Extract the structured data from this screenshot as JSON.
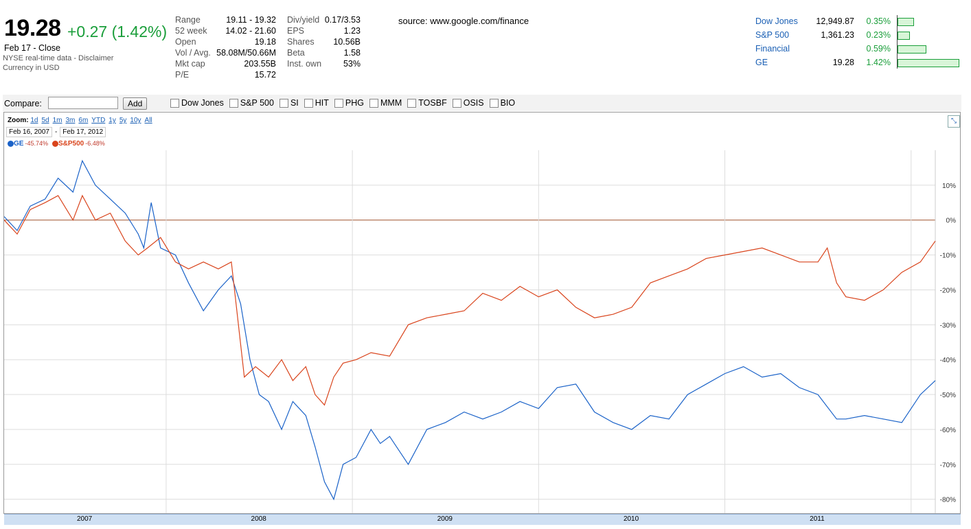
{
  "quote": {
    "price": "19.28",
    "change": "+0.27 (1.42%)",
    "close_label": "Feb 17 - Close",
    "realtime_text": "NYSE real-time data - ",
    "disclaimer": "Disclaimer",
    "currency": "Currency in USD"
  },
  "stats_col1": [
    {
      "key": "Range",
      "value": "19.11 - 19.32"
    },
    {
      "key": "52 week",
      "value": "14.02 - 21.60"
    },
    {
      "key": "Open",
      "value": "19.18"
    },
    {
      "key": "Vol / Avg.",
      "value": "58.08M/50.66M"
    },
    {
      "key": "Mkt cap",
      "value": "203.55B"
    },
    {
      "key": "P/E",
      "value": "15.72"
    }
  ],
  "stats_col2": [
    {
      "key": "Div/yield",
      "value": "0.17/3.53"
    },
    {
      "key": "EPS",
      "value": "1.23"
    },
    {
      "key": "Shares",
      "value": "10.56B"
    },
    {
      "key": "Beta",
      "value": "1.58"
    },
    {
      "key": "Inst. own",
      "value": "53%"
    }
  ],
  "source": "source: www.google.com/finance",
  "indices": [
    {
      "name": "Dow Jones",
      "value": "12,949.87",
      "pct": "0.35%",
      "bar_fraction": 0.25
    },
    {
      "name": "S&P 500",
      "value": "1,361.23",
      "pct": "0.23%",
      "bar_fraction": 0.18
    },
    {
      "name": "Financial",
      "value": "",
      "pct": "0.59%",
      "bar_fraction": 0.45
    },
    {
      "name": "GE",
      "value": "19.28",
      "pct": "1.42%",
      "bar_fraction": 1.0
    }
  ],
  "compare": {
    "label": "Compare:",
    "add_button": "Add",
    "checkboxes": [
      "Dow Jones",
      "S&P 500",
      "SI",
      "HIT",
      "PHG",
      "MMM",
      "TOSBF",
      "OSIS",
      "BIO"
    ]
  },
  "zoom": {
    "label": "Zoom:",
    "options": [
      "1d",
      "5d",
      "1m",
      "3m",
      "6m",
      "YTD",
      "1y",
      "5y",
      "10y",
      "All"
    ],
    "date_from": "Feb 16, 2007",
    "date_sep": "-",
    "date_to": "Feb 17, 2012"
  },
  "legend": [
    {
      "name": "GE",
      "pct": "-45.74%",
      "color": "#1a62c8"
    },
    {
      "name": "S&P500",
      "pct": "-6.48%",
      "color": "#d9441c"
    }
  ],
  "chart_data": {
    "type": "line",
    "y_unit": "percent change",
    "ylim": [
      -84,
      20
    ],
    "yticks": [
      "10%",
      "0%",
      "-10%",
      "-20%",
      "-30%",
      "-40%",
      "-50%",
      "-60%",
      "-70%",
      "-80%"
    ],
    "xlabels": [
      "2007",
      "2008",
      "2009",
      "2010",
      "2011"
    ],
    "xlim": [
      2007.13,
      2012.13
    ],
    "series": [
      {
        "name": "GE",
        "color": "#1a62c8",
        "x": [
          2007.13,
          2007.2,
          2007.27,
          2007.35,
          2007.42,
          2007.5,
          2007.55,
          2007.62,
          2007.7,
          2007.78,
          2007.85,
          2007.88,
          2007.92,
          2007.97,
          2008.05,
          2008.12,
          2008.2,
          2008.28,
          2008.35,
          2008.4,
          2008.45,
          2008.5,
          2008.55,
          2008.62,
          2008.68,
          2008.75,
          2008.8,
          2008.85,
          2008.9,
          2008.95,
          2009.02,
          2009.1,
          2009.15,
          2009.2,
          2009.3,
          2009.4,
          2009.5,
          2009.6,
          2009.7,
          2009.8,
          2009.9,
          2010.0,
          2010.1,
          2010.2,
          2010.3,
          2010.4,
          2010.5,
          2010.6,
          2010.7,
          2010.8,
          2010.9,
          2011.0,
          2011.1,
          2011.2,
          2011.3,
          2011.4,
          2011.5,
          2011.6,
          2011.65,
          2011.75,
          2011.85,
          2011.95,
          2012.05,
          2012.13
        ],
        "y": [
          1,
          -3,
          4,
          6,
          12,
          8,
          17,
          10,
          6,
          2,
          -4,
          -8,
          5,
          -8,
          -10,
          -18,
          -26,
          -20,
          -16,
          -24,
          -40,
          -50,
          -52,
          -60,
          -52,
          -56,
          -65,
          -75,
          -80,
          -70,
          -68,
          -60,
          -64,
          -62,
          -70,
          -60,
          -58,
          -55,
          -57,
          -55,
          -52,
          -54,
          -48,
          -47,
          -55,
          -58,
          -60,
          -56,
          -57,
          -50,
          -47,
          -44,
          -42,
          -45,
          -44,
          -48,
          -50,
          -57,
          -57,
          -56,
          -57,
          -58,
          -50,
          -46
        ]
      },
      {
        "name": "S&P500",
        "color": "#d9441c",
        "x": [
          2007.13,
          2007.2,
          2007.27,
          2007.35,
          2007.42,
          2007.5,
          2007.55,
          2007.62,
          2007.7,
          2007.78,
          2007.85,
          2007.9,
          2007.97,
          2008.05,
          2008.12,
          2008.2,
          2008.28,
          2008.35,
          2008.42,
          2008.48,
          2008.55,
          2008.62,
          2008.68,
          2008.75,
          2008.8,
          2008.85,
          2008.9,
          2008.95,
          2009.02,
          2009.1,
          2009.2,
          2009.3,
          2009.4,
          2009.5,
          2009.6,
          2009.7,
          2009.8,
          2009.9,
          2010.0,
          2010.1,
          2010.2,
          2010.3,
          2010.4,
          2010.5,
          2010.6,
          2010.7,
          2010.8,
          2010.9,
          2011.0,
          2011.1,
          2011.2,
          2011.3,
          2011.4,
          2011.5,
          2011.55,
          2011.6,
          2011.65,
          2011.75,
          2011.85,
          2011.95,
          2012.05,
          2012.13
        ],
        "y": [
          0,
          -4,
          3,
          5,
          7,
          0,
          7,
          0,
          2,
          -6,
          -10,
          -8,
          -5,
          -12,
          -14,
          -12,
          -14,
          -12,
          -45,
          -42,
          -45,
          -40,
          -46,
          -42,
          -50,
          -53,
          -45,
          -41,
          -40,
          -38,
          -39,
          -30,
          -28,
          -27,
          -26,
          -21,
          -23,
          -19,
          -22,
          -20,
          -25,
          -28,
          -27,
          -25,
          -18,
          -16,
          -14,
          -11,
          -10,
          -9,
          -8,
          -10,
          -12,
          -12,
          -8,
          -18,
          -22,
          -23,
          -20,
          -15,
          -12,
          -6
        ]
      }
    ]
  },
  "expand_icon": "expand-icon"
}
